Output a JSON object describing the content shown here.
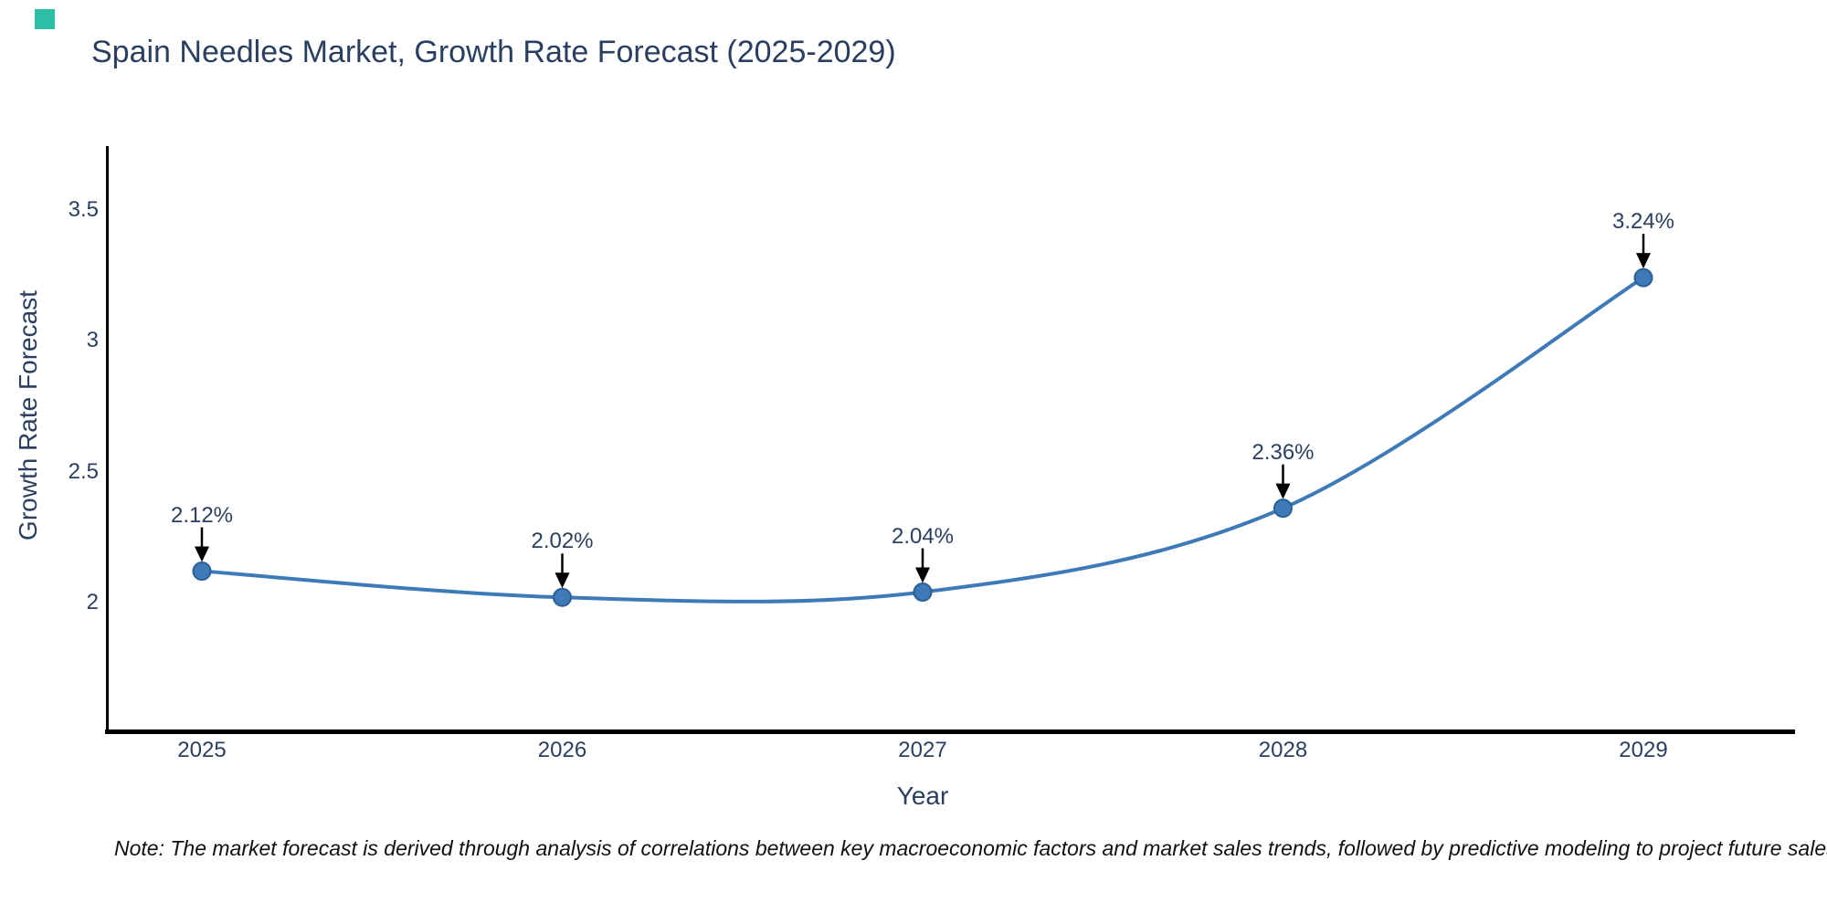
{
  "branding": {
    "logo_color": "#2dbfa6"
  },
  "footer": {
    "note": "Note: The market forecast is derived through analysis of correlations between key macroeconomic factors and market sales trends, followed by predictive modeling to project future sales"
  },
  "chart_data": {
    "type": "line",
    "title": "Spain Needles Market, Growth Rate Forecast (2025-2029)",
    "xlabel": "Year",
    "ylabel": "Growth Rate Forecast",
    "categories": [
      "2025",
      "2026",
      "2027",
      "2028",
      "2029"
    ],
    "x": [
      2025,
      2026,
      2027,
      2028,
      2029
    ],
    "values": [
      2.12,
      2.02,
      2.04,
      2.36,
      3.24
    ],
    "point_labels": [
      "2.12%",
      "2.02%",
      "2.04%",
      "2.36%",
      "3.24%"
    ],
    "yticks": [
      2,
      2.5,
      3,
      3.5
    ],
    "ytick_labels": [
      "2",
      "2.5",
      "3",
      "3.5"
    ],
    "ylim": [
      1.5,
      3.75
    ],
    "xlim": [
      2024.7,
      2029.4
    ],
    "grid": false,
    "legend": "none",
    "curve": "spline",
    "line_color": "#3d7ab7",
    "marker_color": "#3d7ab7",
    "marker_edge_color": "#2b5f98",
    "axis_color": "#000000",
    "text_color": "#2a3f5f",
    "annotation_arrow_color": "#000000"
  }
}
